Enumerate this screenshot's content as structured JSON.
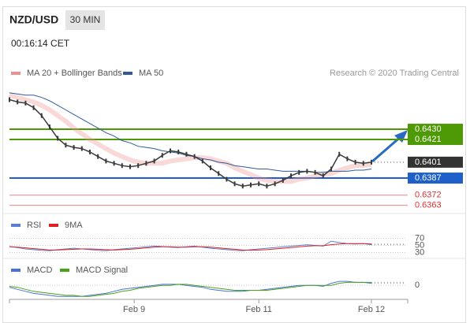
{
  "header": {
    "symbol": "NZD/USD",
    "timeframe": "30 MIN",
    "time": "00:16:14 CET"
  },
  "chart_data": [
    {
      "type": "line",
      "source": "Research © 2020 Trading Central",
      "color": "#3a3a3a",
      "values": [
        0.6456,
        0.6454,
        0.6453,
        0.6449,
        0.6442,
        0.6432,
        0.6422,
        0.6416,
        0.6414,
        0.6413,
        0.641,
        0.6406,
        0.6402,
        0.64,
        0.6398,
        0.6397,
        0.6398,
        0.64,
        0.6402,
        0.6407,
        0.6411,
        0.641,
        0.6408,
        0.6406,
        0.6402,
        0.6396,
        0.6391,
        0.6386,
        0.6382,
        0.638,
        0.6381,
        0.6382,
        0.638,
        0.6382,
        0.6385,
        0.6389,
        0.6392,
        0.6393,
        0.6392,
        0.6389,
        0.6395,
        0.6408,
        0.6404,
        0.6401,
        0.64,
        0.6401
      ],
      "series": [
        {
          "name": "MA 20 + Bollinger Bands",
          "color": "#ef8f8f",
          "values": [
            0.646,
            0.6458,
            0.6456,
            0.6454,
            0.6451,
            0.6447,
            0.6442,
            0.6437,
            0.6431,
            0.6426,
            0.6421,
            0.6417,
            0.6413,
            0.6409,
            0.6406,
            0.6403,
            0.6401,
            0.64,
            0.64,
            0.64,
            0.6402,
            0.6403,
            0.6404,
            0.6405,
            0.6405,
            0.6404,
            0.6402,
            0.64,
            0.6396,
            0.6393,
            0.639,
            0.6387,
            0.6385,
            0.6384,
            0.6384,
            0.6384,
            0.6386,
            0.6387,
            0.6389,
            0.639,
            0.6391,
            0.6394,
            0.6396,
            0.6398,
            0.6398,
            0.6399
          ]
        },
        {
          "name": "MA 50",
          "color": "#2f5b9a",
          "values": [
            0.6462,
            0.6461,
            0.646,
            0.646,
            0.6458,
            0.6455,
            0.6451,
            0.6447,
            0.6443,
            0.6439,
            0.6435,
            0.6431,
            0.6427,
            0.6424,
            0.642,
            0.6418,
            0.6415,
            0.6414,
            0.6413,
            0.6411,
            0.641,
            0.6409,
            0.6407,
            0.6406,
            0.6404,
            0.6403,
            0.6401,
            0.64,
            0.6398,
            0.6397,
            0.6396,
            0.6395,
            0.6395,
            0.6394,
            0.6393,
            0.6393,
            0.6393,
            0.6393,
            0.6392,
            0.6392,
            0.6393,
            0.6393,
            0.6393,
            0.6394,
            0.6394,
            0.6395
          ]
        }
      ],
      "levels": [
        {
          "value": 0.643,
          "label": "0.6430",
          "color": "#4e9a06",
          "style": "box"
        },
        {
          "value": 0.6421,
          "label": "0.6421",
          "color": "#4e9a06",
          "style": "box"
        },
        {
          "value": 0.6401,
          "label": "0.6401",
          "color": "#333333",
          "style": "current"
        },
        {
          "value": 0.6387,
          "label": "0.6387",
          "color": "#1f5fc9",
          "style": "box"
        },
        {
          "value": 0.6372,
          "label": "0.6372",
          "color": "#e03030",
          "style": "text"
        },
        {
          "value": 0.6363,
          "label": "0.6363",
          "color": "#e03030",
          "style": "text"
        }
      ],
      "ylim": [
        0.636,
        0.6464
      ]
    },
    {
      "type": "line",
      "series": [
        {
          "name": "RSI",
          "color": "#5b7fd6",
          "values": [
            47,
            44,
            40,
            38,
            36,
            35,
            38,
            40,
            42,
            40,
            38,
            36,
            35,
            38,
            40,
            42,
            44,
            46,
            48,
            47,
            45,
            44,
            46,
            48,
            45,
            42,
            40,
            38,
            36,
            35,
            38,
            40,
            42,
            44,
            46,
            48,
            50,
            52,
            50,
            48,
            62,
            58,
            55,
            54,
            55,
            52
          ]
        },
        {
          "name": "9MA",
          "color": "#e02020",
          "values": [
            46,
            45,
            43,
            41,
            39,
            37,
            37,
            38,
            39,
            40,
            40,
            39,
            38,
            37,
            38,
            39,
            41,
            43,
            45,
            46,
            46,
            45,
            45,
            46,
            46,
            45,
            43,
            41,
            39,
            37,
            36,
            37,
            38,
            40,
            42,
            44,
            46,
            48,
            49,
            49,
            52,
            54,
            55,
            55,
            55,
            54
          ]
        }
      ],
      "ylim": [
        20,
        90
      ],
      "yticks": [
        70,
        50,
        30
      ]
    },
    {
      "type": "line",
      "series": [
        {
          "name": "MACD",
          "color": "#4a72d8",
          "values": [
            -2,
            -4,
            -6,
            -8,
            -9,
            -10,
            -11,
            -11,
            -11,
            -11,
            -10,
            -9,
            -8,
            -6,
            -4,
            -3,
            -2,
            -1,
            0,
            1,
            1,
            1,
            0,
            -1,
            -2,
            -4,
            -5,
            -6,
            -6,
            -6,
            -5,
            -5,
            -4,
            -3,
            -2,
            -1,
            0,
            0,
            0,
            -1,
            2,
            4,
            4,
            3,
            3,
            2
          ]
        },
        {
          "name": "MACD Signal",
          "color": "#4aa31a",
          "values": [
            -1,
            -2,
            -4,
            -6,
            -7,
            -8,
            -9,
            -10,
            -10,
            -11,
            -11,
            -10,
            -9,
            -8,
            -6,
            -5,
            -3,
            -2,
            -1,
            0,
            0,
            1,
            1,
            0,
            -1,
            -2,
            -3,
            -4,
            -5,
            -5,
            -5,
            -5,
            -5,
            -4,
            -3,
            -2,
            -1,
            0,
            0,
            0,
            0,
            2,
            3,
            3,
            3,
            3
          ]
        }
      ],
      "ylim": [
        -14,
        8
      ],
      "yticks": [
        0
      ],
      "xticks": [
        {
          "value": 15.5,
          "label": "Feb 9"
        },
        {
          "value": 31,
          "label": "Feb 11"
        },
        {
          "value": 45,
          "label": "Feb 12"
        }
      ]
    }
  ]
}
